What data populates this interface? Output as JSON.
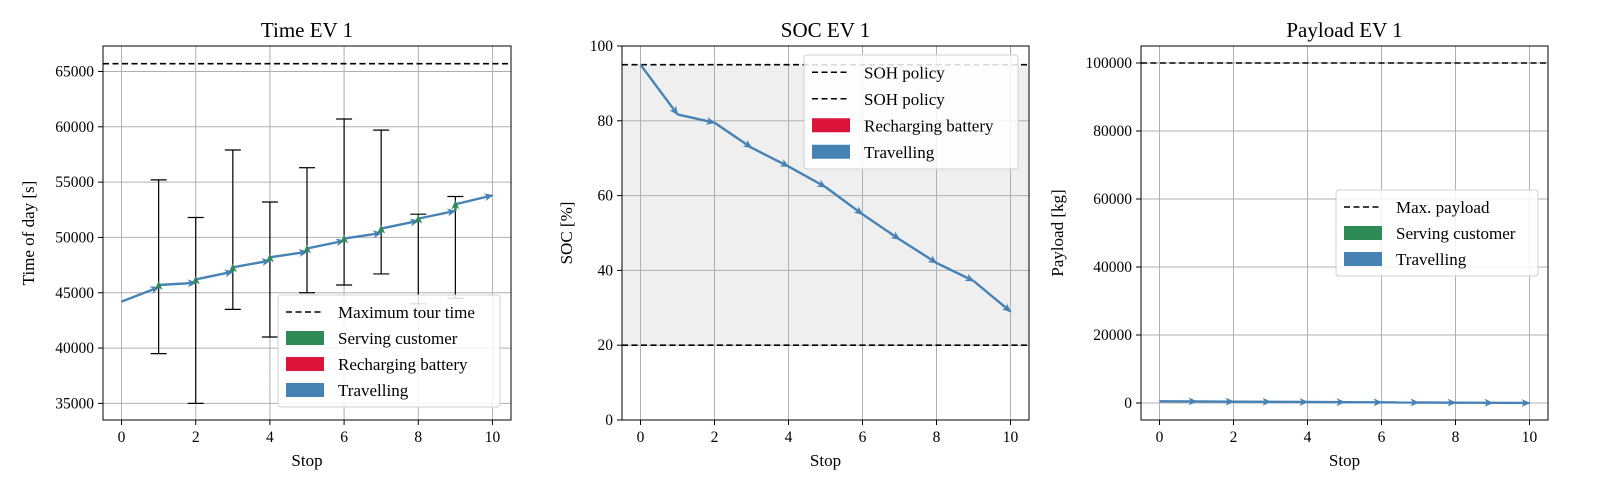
{
  "colors": {
    "travelling": "#4682b4",
    "serving": "#2e8b57",
    "recharging": "#dc143c",
    "limit_line": "#000000",
    "shade": "#efefef"
  },
  "chart_data": [
    {
      "type": "line",
      "title": "Time EV 1",
      "xlabel": "Stop",
      "ylabel": "Time of day [s]",
      "xlim": [
        -0.5,
        10.5
      ],
      "ylim": [
        33500,
        67300
      ],
      "xticks": [
        0,
        2,
        4,
        6,
        8,
        10
      ],
      "yticks": [
        35000,
        40000,
        45000,
        50000,
        55000,
        60000,
        65000
      ],
      "grid": true,
      "hlines": [
        {
          "y": 65700,
          "legend": "Maximum tour time"
        }
      ],
      "series": [
        {
          "name": "Travelling",
          "segments": [
            [
              0,
              44200,
              1,
              45500
            ],
            [
              1,
              45700,
              2,
              45900
            ],
            [
              2,
              46200,
              3,
              46900
            ],
            [
              3,
              47300,
              4,
              47900
            ],
            [
              4,
              48200,
              5,
              48700
            ],
            [
              5,
              49000,
              6,
              49700
            ],
            [
              6,
              49900,
              7,
              50400
            ],
            [
              7,
              50800,
              8,
              51500
            ],
            [
              8,
              51700,
              9,
              52400
            ],
            [
              9,
              53000,
              10,
              53800
            ]
          ]
        },
        {
          "name": "Serving customer",
          "segments": [
            [
              1,
              45500,
              1,
              45700
            ],
            [
              2,
              45900,
              2,
              46200
            ],
            [
              3,
              46900,
              3,
              47300
            ],
            [
              4,
              47900,
              4,
              48200
            ],
            [
              5,
              48700,
              5,
              49000
            ],
            [
              6,
              49700,
              6,
              49900
            ],
            [
              7,
              50400,
              7,
              50800
            ],
            [
              8,
              51500,
              8,
              51700
            ],
            [
              9,
              52400,
              9,
              53000
            ]
          ]
        }
      ],
      "error_bars": [
        {
          "x": 1,
          "low": 39500,
          "high": 55200
        },
        {
          "x": 2,
          "low": 35000,
          "high": 51800
        },
        {
          "x": 3,
          "low": 43500,
          "high": 57900
        },
        {
          "x": 4,
          "low": 41000,
          "high": 53200
        },
        {
          "x": 5,
          "low": 45000,
          "high": 56300
        },
        {
          "x": 6,
          "low": 45700,
          "high": 60700
        },
        {
          "x": 7,
          "low": 46700,
          "high": 59700
        },
        {
          "x": 8,
          "low": 44000,
          "high": 52100
        },
        {
          "x": 9,
          "low": 44500,
          "high": 53700
        }
      ],
      "legend": {
        "placement": "lower-right",
        "entries": [
          {
            "label": "Maximum tour time",
            "kind": "line",
            "color": "#000000"
          },
          {
            "label": "Serving customer",
            "kind": "patch",
            "color": "#2e8b57"
          },
          {
            "label": "Recharging battery",
            "kind": "patch",
            "color": "#dc143c"
          },
          {
            "label": "Travelling",
            "kind": "patch",
            "color": "#4682b4"
          }
        ]
      }
    },
    {
      "type": "line",
      "title": "SOC EV 1",
      "xlabel": "Stop",
      "ylabel": "SOC [%]",
      "xlim": [
        -0.5,
        10.5
      ],
      "ylim": [
        0,
        100
      ],
      "xticks": [
        0,
        2,
        4,
        6,
        8,
        10
      ],
      "yticks": [
        0,
        20,
        40,
        60,
        80,
        100
      ],
      "grid": true,
      "shaded_band": [
        20,
        95
      ],
      "hlines": [
        {
          "y": 95,
          "legend": "SOH policy"
        },
        {
          "y": 20,
          "legend": "SOH policy"
        }
      ],
      "series": [
        {
          "name": "Travelling",
          "segments": [
            [
              0,
              95,
              1,
              81.7
            ],
            [
              1,
              81.7,
              2,
              79.5
            ],
            [
              2,
              79.5,
              3,
              72.8
            ],
            [
              3,
              72.8,
              4,
              67.8
            ],
            [
              4,
              67.8,
              5,
              62.3
            ],
            [
              5,
              62.3,
              6,
              55
            ],
            [
              6,
              55,
              7,
              48.3
            ],
            [
              7,
              48.3,
              8,
              42
            ],
            [
              8,
              42,
              9,
              37.2
            ],
            [
              9,
              37.2,
              10,
              29
            ]
          ]
        }
      ],
      "legend": {
        "placement": "upper-right",
        "entries": [
          {
            "label": "SOH policy",
            "kind": "line",
            "color": "#000000"
          },
          {
            "label": "SOH policy",
            "kind": "line",
            "color": "#000000"
          },
          {
            "label": "Recharging battery",
            "kind": "patch",
            "color": "#dc143c"
          },
          {
            "label": "Travelling",
            "kind": "patch",
            "color": "#4682b4"
          }
        ]
      }
    },
    {
      "type": "line",
      "title": "Payload EV 1",
      "xlabel": "Stop",
      "ylabel": "Payload [kg]",
      "xlim": [
        -0.5,
        10.5
      ],
      "ylim": [
        -5000,
        105000
      ],
      "xticks": [
        0,
        2,
        4,
        6,
        8,
        10
      ],
      "yticks": [
        0,
        20000,
        40000,
        60000,
        80000,
        100000
      ],
      "grid": true,
      "hlines": [
        {
          "y": 100000,
          "legend": "Max. payload"
        }
      ],
      "series": [
        {
          "name": "Travelling",
          "segments": [
            [
              0,
              500,
              1,
              450
            ],
            [
              1,
              450,
              2,
              400
            ],
            [
              2,
              400,
              3,
              350
            ],
            [
              3,
              350,
              4,
              300
            ],
            [
              4,
              300,
              5,
              250
            ],
            [
              5,
              250,
              6,
              200
            ],
            [
              6,
              200,
              7,
              150
            ],
            [
              7,
              150,
              8,
              100
            ],
            [
              8,
              100,
              9,
              50
            ],
            [
              9,
              50,
              10,
              0
            ]
          ]
        }
      ],
      "legend": {
        "placement": "center-right",
        "entries": [
          {
            "label": "Max. payload",
            "kind": "line",
            "color": "#000000"
          },
          {
            "label": "Serving customer",
            "kind": "patch",
            "color": "#2e8b57"
          },
          {
            "label": "Travelling",
            "kind": "patch",
            "color": "#4682b4"
          }
        ]
      }
    }
  ]
}
